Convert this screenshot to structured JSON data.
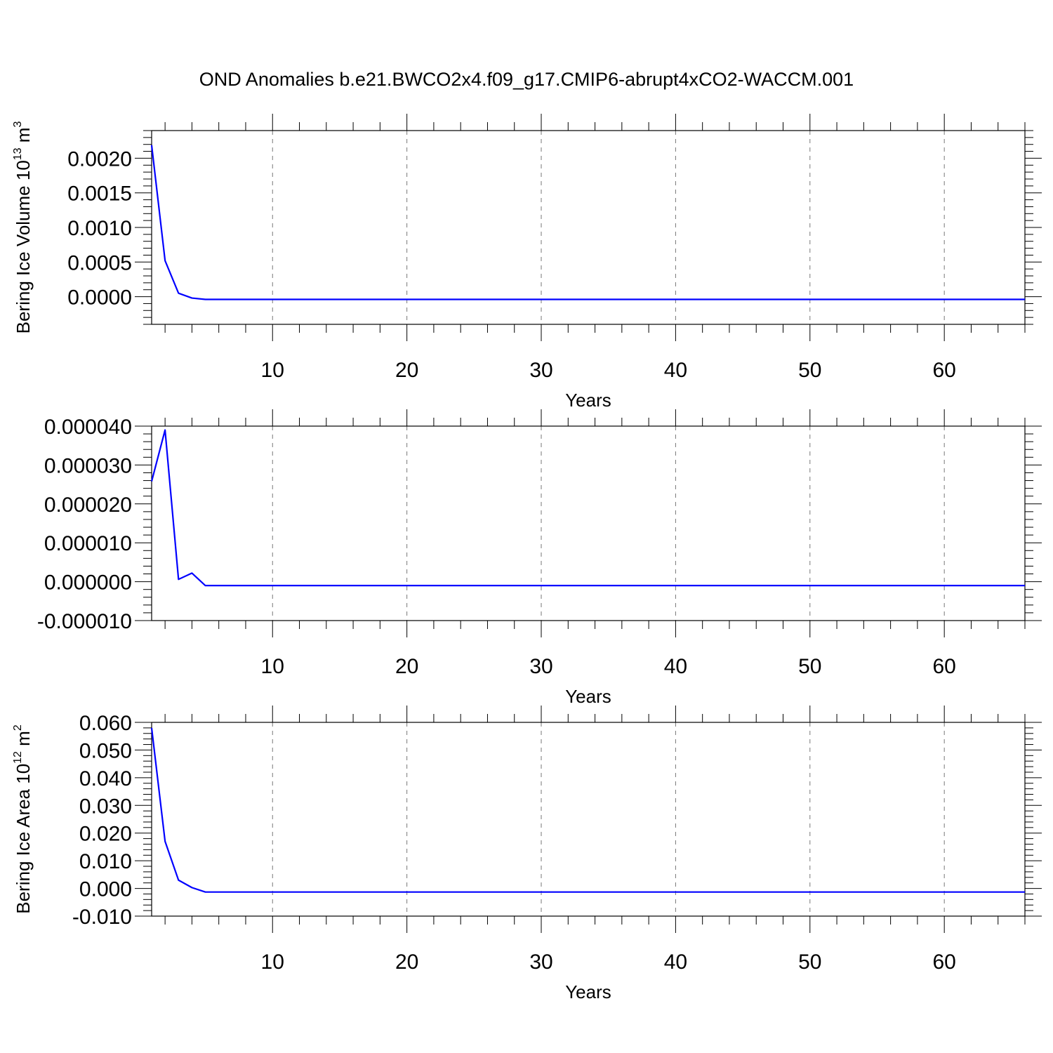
{
  "title": "OND Anomalies b.e21.BWCO2x4.f09_g17.CMIP6-abrupt4xCO2-WACCM.001",
  "line_color": "#0000ff",
  "chart_data": [
    {
      "type": "line",
      "xlabel": "Years",
      "ylabel": "Bering Ice Volume 10",
      "ylabel_sup1": "13",
      "ylabel_unit": " m",
      "ylabel_sup2": "3",
      "xlim": [
        1,
        66
      ],
      "ylim": [
        -0.0004,
        0.0024
      ],
      "xticks": [
        10,
        20,
        30,
        40,
        50,
        60
      ],
      "xtick_labels": [
        "10",
        "20",
        "30",
        "40",
        "50",
        "60"
      ],
      "yticks": [
        0,
        0.0005,
        0.001,
        0.0015,
        0.002
      ],
      "ytick_labels": [
        "0.0000",
        "0.0005",
        "0.0010",
        "0.0015",
        "0.0020"
      ],
      "grid": "vertical dashed",
      "x": [
        1,
        2,
        3,
        4,
        5,
        6,
        7,
        8,
        9,
        10,
        11,
        12,
        13,
        14,
        15,
        16,
        17,
        18,
        19,
        20,
        21,
        22,
        23,
        24,
        25,
        26,
        27,
        28,
        29,
        30,
        31,
        32,
        33,
        34,
        35,
        36,
        37,
        38,
        39,
        40,
        41,
        42,
        43,
        44,
        45,
        46,
        47,
        48,
        49,
        50,
        51,
        52,
        53,
        54,
        55,
        56,
        57,
        58,
        59,
        60,
        61,
        62,
        63,
        64,
        65,
        66
      ],
      "y": [
        0.00219,
        0.00052,
        5e-05,
        -2e-05,
        -4e-05,
        -4e-05,
        -4e-05,
        -4e-05,
        -4e-05,
        -4e-05,
        -4e-05,
        -4e-05,
        -4e-05,
        -4e-05,
        -4e-05,
        -4e-05,
        -4e-05,
        -4e-05,
        -4e-05,
        -4e-05,
        -4e-05,
        -4e-05,
        -4e-05,
        -4e-05,
        -4e-05,
        -4e-05,
        -4e-05,
        -4e-05,
        -4e-05,
        -4e-05,
        -4e-05,
        -4e-05,
        -4e-05,
        -4e-05,
        -4e-05,
        -4e-05,
        -4e-05,
        -4e-05,
        -4e-05,
        -4e-05,
        -4e-05,
        -4e-05,
        -4e-05,
        -4e-05,
        -4e-05,
        -4e-05,
        -4e-05,
        -4e-05,
        -4e-05,
        -4e-05,
        -4e-05,
        -4e-05,
        -4e-05,
        -4e-05,
        -4e-05,
        -4e-05,
        -4e-05,
        -4e-05,
        -4e-05,
        -4e-05,
        -4e-05,
        -4e-05,
        -4e-05,
        -4e-05,
        -4e-05,
        -4e-05
      ]
    },
    {
      "type": "line",
      "xlabel": "Years",
      "ylabel": "",
      "ylabel_sup1": "",
      "ylabel_unit": "",
      "ylabel_sup2": "",
      "xlim": [
        1,
        66
      ],
      "ylim": [
        -1e-05,
        4e-05
      ],
      "xticks": [
        10,
        20,
        30,
        40,
        50,
        60
      ],
      "xtick_labels": [
        "10",
        "20",
        "30",
        "40",
        "50",
        "60"
      ],
      "yticks": [
        -1e-05,
        0,
        1e-05,
        2e-05,
        3e-05,
        4e-05
      ],
      "ytick_labels": [
        "-0.000010",
        "0.000000",
        "0.000010",
        "0.000020",
        "0.000030",
        "0.000040"
      ],
      "grid": "vertical dashed",
      "x": [
        1,
        2,
        3,
        4,
        5,
        6,
        7,
        8,
        9,
        10,
        11,
        12,
        13,
        14,
        15,
        16,
        17,
        18,
        19,
        20,
        21,
        22,
        23,
        24,
        25,
        26,
        27,
        28,
        29,
        30,
        31,
        32,
        33,
        34,
        35,
        36,
        37,
        38,
        39,
        40,
        41,
        42,
        43,
        44,
        45,
        46,
        47,
        48,
        49,
        50,
        51,
        52,
        53,
        54,
        55,
        56,
        57,
        58,
        59,
        60,
        61,
        62,
        63,
        64,
        65,
        66
      ],
      "y": [
        2.58e-05,
        3.9e-05,
        6e-07,
        2.2e-06,
        -1e-06,
        -1e-06,
        -1e-06,
        -1e-06,
        -1e-06,
        -1e-06,
        -1e-06,
        -1e-06,
        -1e-06,
        -1e-06,
        -1e-06,
        -1e-06,
        -1e-06,
        -1e-06,
        -1e-06,
        -1e-06,
        -1e-06,
        -1e-06,
        -1e-06,
        -1e-06,
        -1e-06,
        -1e-06,
        -1e-06,
        -1e-06,
        -1e-06,
        -1e-06,
        -1e-06,
        -1e-06,
        -1e-06,
        -1e-06,
        -1e-06,
        -1e-06,
        -1e-06,
        -1e-06,
        -1e-06,
        -1e-06,
        -1e-06,
        -1e-06,
        -1e-06,
        -1e-06,
        -1e-06,
        -1e-06,
        -1e-06,
        -1e-06,
        -1e-06,
        -1e-06,
        -1e-06,
        -1e-06,
        -1e-06,
        -1e-06,
        -1e-06,
        -1e-06,
        -1e-06,
        -1e-06,
        -1e-06,
        -1e-06,
        -1e-06,
        -1e-06,
        -1e-06,
        -1e-06,
        -1e-06,
        -1e-06
      ]
    },
    {
      "type": "line",
      "xlabel": "Years",
      "ylabel": "Bering Ice Area 10",
      "ylabel_sup1": "12",
      "ylabel_unit": " m",
      "ylabel_sup2": "2",
      "xlim": [
        1,
        66
      ],
      "ylim": [
        -0.01,
        0.06
      ],
      "xticks": [
        10,
        20,
        30,
        40,
        50,
        60
      ],
      "xtick_labels": [
        "10",
        "20",
        "30",
        "40",
        "50",
        "60"
      ],
      "yticks": [
        -0.01,
        0,
        0.01,
        0.02,
        0.03,
        0.04,
        0.05,
        0.06
      ],
      "ytick_labels": [
        "-0.010",
        "0.000",
        "0.010",
        "0.020",
        "0.030",
        "0.040",
        "0.050",
        "0.060"
      ],
      "grid": "vertical dashed",
      "x": [
        1,
        2,
        3,
        4,
        5,
        6,
        7,
        8,
        9,
        10,
        11,
        12,
        13,
        14,
        15,
        16,
        17,
        18,
        19,
        20,
        21,
        22,
        23,
        24,
        25,
        26,
        27,
        28,
        29,
        30,
        31,
        32,
        33,
        34,
        35,
        36,
        37,
        38,
        39,
        40,
        41,
        42,
        43,
        44,
        45,
        46,
        47,
        48,
        49,
        50,
        51,
        52,
        53,
        54,
        55,
        56,
        57,
        58,
        59,
        60,
        61,
        62,
        63,
        64,
        65,
        66
      ],
      "y": [
        0.058,
        0.017,
        0.003,
        0.0003,
        -0.0013,
        -0.0013,
        -0.0013,
        -0.0013,
        -0.0013,
        -0.0013,
        -0.0013,
        -0.0013,
        -0.0013,
        -0.0013,
        -0.0013,
        -0.0013,
        -0.0013,
        -0.0013,
        -0.0013,
        -0.0013,
        -0.0013,
        -0.0013,
        -0.0013,
        -0.0013,
        -0.0013,
        -0.0013,
        -0.0013,
        -0.0013,
        -0.0013,
        -0.0013,
        -0.0013,
        -0.0013,
        -0.0013,
        -0.0013,
        -0.0013,
        -0.0013,
        -0.0013,
        -0.0013,
        -0.0013,
        -0.0013,
        -0.0013,
        -0.0013,
        -0.0013,
        -0.0013,
        -0.0013,
        -0.0013,
        -0.0013,
        -0.0013,
        -0.0013,
        -0.0013,
        -0.0013,
        -0.0013,
        -0.0013,
        -0.0013,
        -0.0013,
        -0.0013,
        -0.0013,
        -0.0013,
        -0.0013,
        -0.0013,
        -0.0013,
        -0.0013,
        -0.0013,
        -0.0013,
        -0.0013,
        -0.0013
      ]
    }
  ]
}
